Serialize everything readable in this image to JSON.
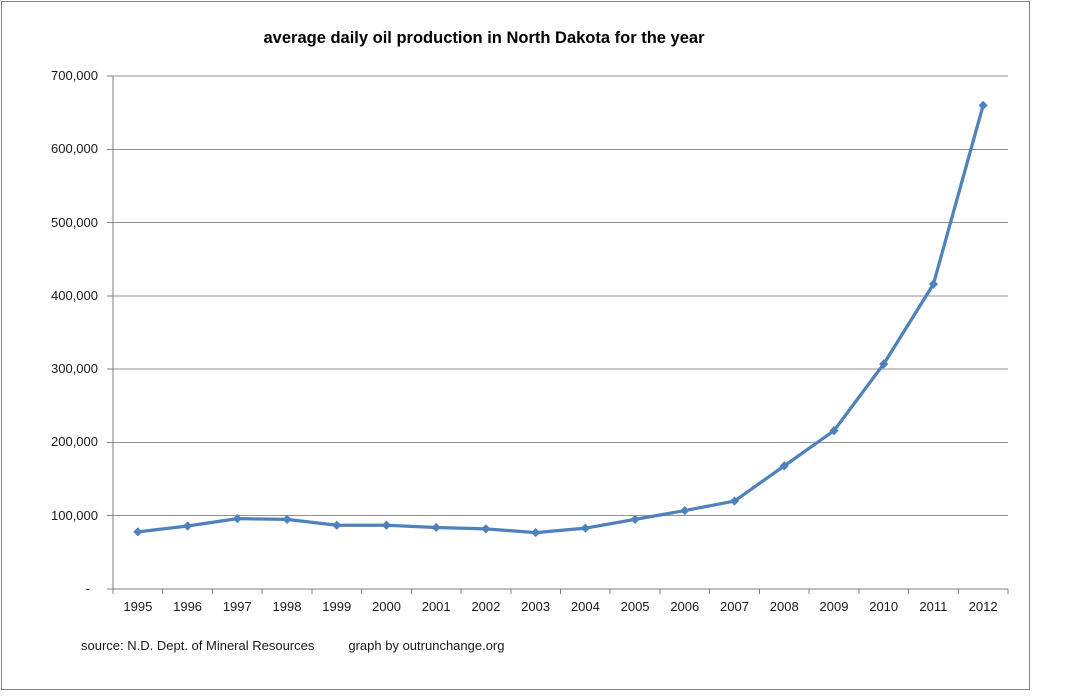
{
  "chart_data": {
    "type": "line",
    "title": "average daily oil production in North Dakota for the year",
    "categories": [
      "1995",
      "1996",
      "1997",
      "1998",
      "1999",
      "2000",
      "2001",
      "2002",
      "2003",
      "2004",
      "2005",
      "2006",
      "2007",
      "2008",
      "2009",
      "2010",
      "2011",
      "2012"
    ],
    "values": [
      78000,
      86000,
      96000,
      95000,
      87000,
      87000,
      84000,
      82000,
      77000,
      83000,
      95000,
      107000,
      120000,
      168000,
      216000,
      307000,
      416000,
      660000
    ],
    "ylim": [
      0,
      700000
    ],
    "ytick_interval": 100000,
    "ytick_labels": [
      "-",
      "100,000",
      "200,000",
      "300,000",
      "400,000",
      "500,000",
      "600,000",
      "700,000"
    ],
    "xlabel": "",
    "ylabel": "",
    "legend_position": "none",
    "grid": "horizontal",
    "marker": "diamond",
    "colors": {
      "series_line": "#4f81bd",
      "gridline": "#919191",
      "axis": "#7f7f7f",
      "chart_border": "#848484",
      "text": "#1a1a1a",
      "background": "#ffffff"
    }
  },
  "footer": {
    "source": "source: N.D. Dept. of Mineral Resources",
    "credit": "graph by outrunchange.org"
  }
}
